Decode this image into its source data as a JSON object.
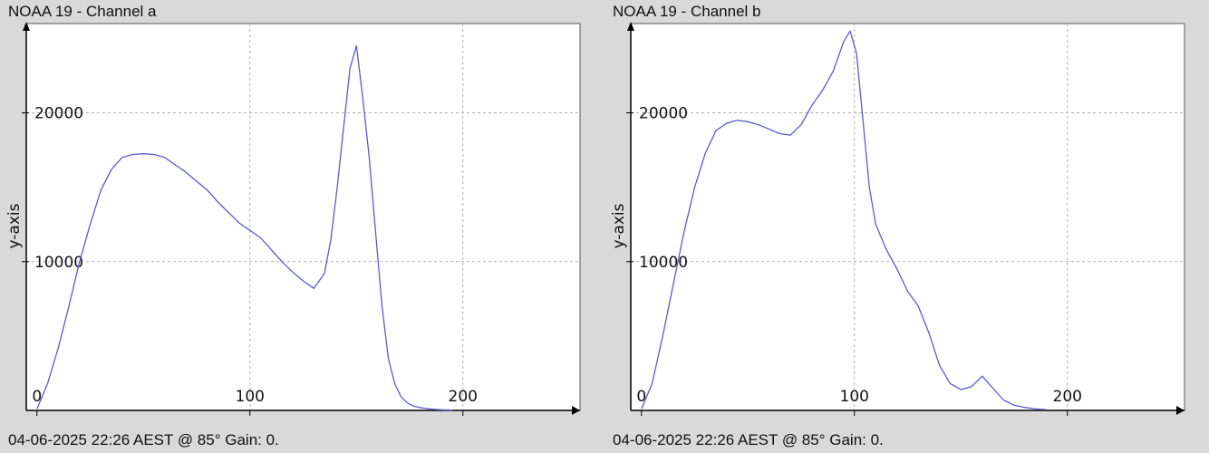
{
  "panels": [
    {
      "title": "NOAA 19 - Channel a",
      "footer": "04-06-2025 22:26 AEST @ 85° Gain: 0.",
      "ylabel": "y-axis"
    },
    {
      "title": "NOAA 19 - Channel b",
      "footer": "04-06-2025 22:26 AEST @ 85° Gain: 0.",
      "ylabel": "y-axis"
    }
  ],
  "chart_data": [
    {
      "type": "line",
      "title": "NOAA 19 - Channel a",
      "xlabel": "",
      "ylabel": "y-axis",
      "xlim": [
        -5,
        255
      ],
      "ylim": [
        0,
        26000
      ],
      "x_ticks": [
        0,
        100,
        200
      ],
      "y_ticks": [
        10000,
        20000
      ],
      "grid": true,
      "line_color": "#5a5ad2",
      "series": [
        {
          "x": [
            0,
            5,
            10,
            15,
            20,
            25,
            30,
            35,
            40,
            45,
            50,
            55,
            60,
            65,
            70,
            75,
            80,
            85,
            90,
            95,
            100,
            105,
            110,
            115,
            120,
            125,
            130,
            135,
            138,
            141,
            144,
            147,
            150,
            153,
            156,
            159,
            162,
            165,
            168,
            171,
            174,
            177,
            180,
            185,
            190,
            195
          ],
          "y": [
            100,
            1800,
            4200,
            7000,
            10000,
            12500,
            14800,
            16200,
            17000,
            17200,
            17250,
            17200,
            17000,
            16500,
            16000,
            15400,
            14800,
            14000,
            13300,
            12600,
            12100,
            11600,
            10800,
            10000,
            9300,
            8700,
            8200,
            9200,
            11500,
            15000,
            19000,
            23000,
            24500,
            21000,
            17000,
            12000,
            7000,
            3500,
            1800,
            900,
            500,
            280,
            180,
            90,
            40,
            10
          ]
        }
      ]
    },
    {
      "type": "line",
      "title": "NOAA 19 - Channel b",
      "xlabel": "",
      "ylabel": "y-axis",
      "xlim": [
        -5,
        255
      ],
      "ylim": [
        0,
        26000
      ],
      "x_ticks": [
        0,
        100,
        200
      ],
      "y_ticks": [
        10000,
        20000
      ],
      "grid": true,
      "line_color": "#5a5ad2",
      "series": [
        {
          "x": [
            0,
            5,
            10,
            15,
            20,
            25,
            30,
            35,
            40,
            45,
            50,
            55,
            60,
            65,
            70,
            75,
            80,
            85,
            90,
            95,
            98,
            101,
            104,
            107,
            110,
            115,
            120,
            125,
            130,
            135,
            140,
            145,
            150,
            155,
            160,
            165,
            170,
            175,
            180,
            185,
            190
          ],
          "y": [
            100,
            1800,
            5000,
            8500,
            12000,
            15000,
            17300,
            18800,
            19300,
            19500,
            19400,
            19200,
            18900,
            18600,
            18500,
            19200,
            20500,
            21500,
            22800,
            24800,
            25500,
            24000,
            19500,
            15000,
            12500,
            10800,
            9500,
            8000,
            7000,
            5200,
            3000,
            1800,
            1400,
            1600,
            2300,
            1500,
            700,
            350,
            200,
            100,
            50
          ]
        }
      ]
    }
  ]
}
